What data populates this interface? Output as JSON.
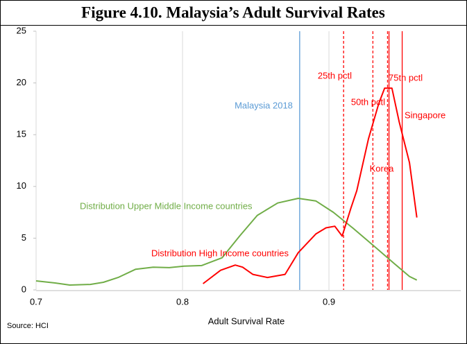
{
  "chart_data": {
    "type": "line",
    "title": "Figure 4.10. Malaysia’s Adult Survival Rates",
    "xlabel": "Adult Survival Rate",
    "source": "Source: HCI",
    "xlim": [
      0.7,
      0.99
    ],
    "xticks": [
      0.7,
      0.8,
      0.9
    ],
    "ylim": [
      0,
      25
    ],
    "yticks": [
      0,
      5,
      10,
      15,
      20,
      25
    ],
    "grid": "x",
    "series": [
      {
        "name": "Distribution Upper Middle Income countries",
        "color": "#70ad47",
        "x": [
          0.7,
          0.713,
          0.723,
          0.737,
          0.746,
          0.756,
          0.768,
          0.78,
          0.791,
          0.801,
          0.813,
          0.827,
          0.839,
          0.851,
          0.865,
          0.879,
          0.891,
          0.903,
          0.917,
          0.931,
          0.945,
          0.955,
          0.96
        ],
        "values": [
          0.87,
          0.67,
          0.47,
          0.53,
          0.74,
          1.2,
          2.0,
          2.2,
          2.15,
          2.3,
          2.35,
          3.1,
          5.2,
          7.2,
          8.4,
          8.85,
          8.6,
          7.5,
          5.9,
          4.2,
          2.5,
          1.3,
          0.95
        ]
      },
      {
        "name": "Distribution High Income countries",
        "color": "#ff0000",
        "x": [
          0.814,
          0.826,
          0.836,
          0.841,
          0.848,
          0.858,
          0.87,
          0.879,
          0.891,
          0.898,
          0.904,
          0.909,
          0.915,
          0.919,
          0.927,
          0.934,
          0.938,
          0.943,
          0.948,
          0.955,
          0.96
        ],
        "values": [
          0.6,
          1.9,
          2.4,
          2.2,
          1.5,
          1.2,
          1.5,
          3.6,
          5.4,
          6.0,
          6.15,
          5.2,
          7.9,
          9.6,
          14.6,
          18,
          19.5,
          19.5,
          16.2,
          12.3,
          7.0
        ]
      }
    ],
    "reference_lines": [
      {
        "name": "Malaysia 2018",
        "x": 0.88,
        "color": "#5b9bd5",
        "style": "solid"
      },
      {
        "name": "25th pctl",
        "x": 0.91,
        "color": "#ff0000",
        "style": "dashed"
      },
      {
        "name": "50th pctl",
        "x": 0.93,
        "color": "#ff0000",
        "style": "dashed"
      },
      {
        "name": "75th pctl",
        "x": 0.94,
        "color": "#ff0000",
        "style": "dashed"
      },
      {
        "name": "Korea",
        "x": 0.941,
        "color": "#ff0000",
        "style": "solid"
      },
      {
        "name": "Singapore",
        "x": 0.95,
        "color": "#ff0000",
        "style": "solid"
      }
    ]
  }
}
